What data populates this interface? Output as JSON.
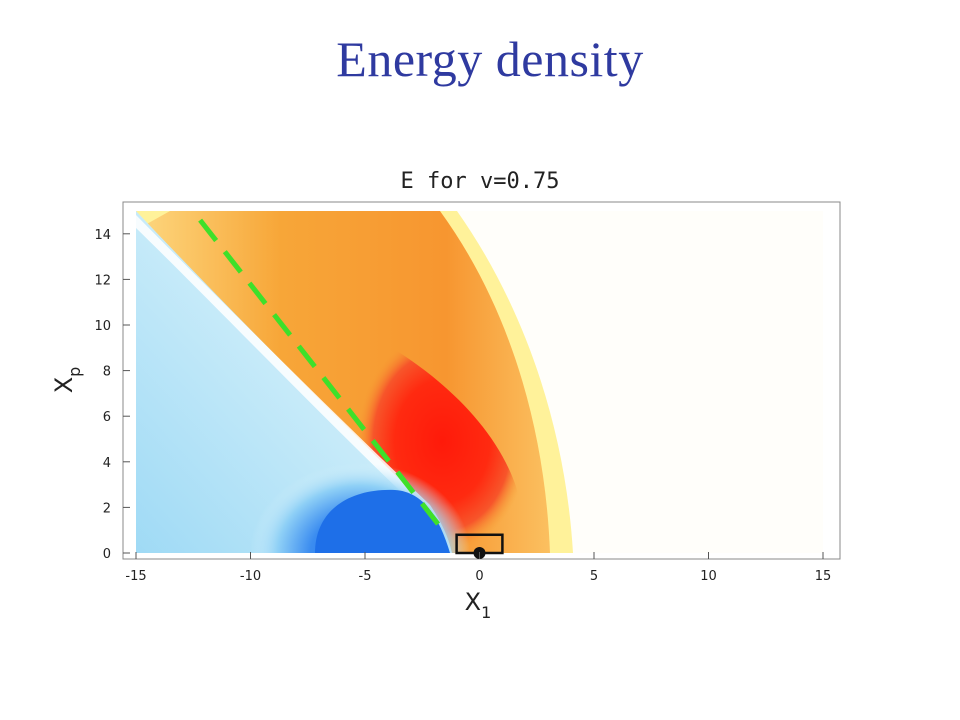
{
  "slide": {
    "title": "Energy density"
  },
  "chart_data": {
    "type": "heatmap",
    "title": "E for v=0.75",
    "xlabel": "X",
    "xlabel_sub": "1",
    "ylabel": "X",
    "ylabel_sub": "p",
    "xlim": [
      -15,
      15
    ],
    "ylim": [
      0,
      15
    ],
    "xticks": [
      -15,
      -10,
      -5,
      0,
      5,
      10,
      15
    ],
    "yticks": [
      0,
      2,
      4,
      6,
      8,
      10,
      12,
      14
    ],
    "grid": false,
    "colormap": [
      "#1e6fe8",
      "#ffffff",
      "#fff29a",
      "#f7a233",
      "#ff2a10"
    ],
    "overlays": {
      "dashed_line": {
        "color": "#3ee02a",
        "x": [
          -12.2,
          -1.6
        ],
        "y": [
          14.6,
          1.0
        ]
      },
      "point": {
        "x": 0,
        "y": 0
      },
      "box": {
        "x": [
          -1,
          1
        ],
        "y": [
          0,
          0.8
        ]
      }
    }
  }
}
